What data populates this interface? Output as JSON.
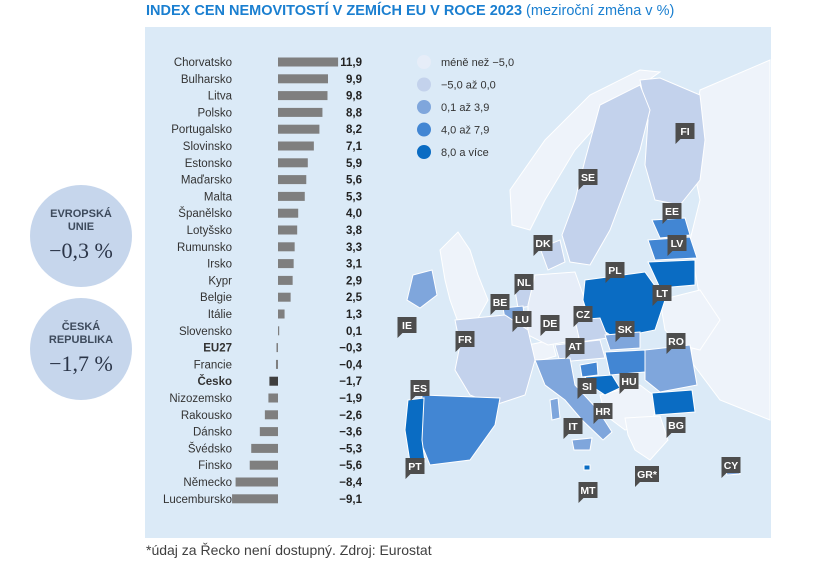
{
  "title": {
    "main": "INDEX CEN NEMOVITOSTÍ V ZEMÍCH EU V ROCE 2023",
    "sub": "(meziroční změna v %)"
  },
  "summary": {
    "eu": {
      "label_line1": "EVROPSKÁ",
      "label_line2": "UNIE",
      "value": "−0,3 %"
    },
    "cz": {
      "label_line1": "ČESKÁ",
      "label_line2": "REPUBLIKA",
      "value": "−1,7 %"
    }
  },
  "legend": [
    {
      "label": "méně než −5,0",
      "color": "#e6edf8"
    },
    {
      "label": "−5,0 až 0,0",
      "color": "#c3d2ec"
    },
    {
      "label": "0,1 až 3,9",
      "color": "#7fa6dc"
    },
    {
      "label": "4,0 až 7,9",
      "color": "#4286d3"
    },
    {
      "label": "8,0 a více",
      "color": "#0a6cc3"
    }
  ],
  "map_labels": [
    "FI",
    "SE",
    "EE",
    "LV",
    "DK",
    "LT",
    "PL",
    "NL",
    "BE",
    "LU",
    "DE",
    "CZ",
    "SK",
    "IE",
    "FR",
    "AT",
    "RO",
    "ES",
    "SI",
    "HU",
    "HR",
    "IT",
    "BG",
    "PT",
    "GR*",
    "MT",
    "CY"
  ],
  "footnote": "*údaj za Řecko není dostupný. Zdroj: Eurostat",
  "colors": {
    "bar": "#7f7f7f",
    "bar_highlight": "#3f3f3f",
    "title": "#1a7fd0",
    "panel": "#dbeaf7"
  },
  "chart_data": {
    "type": "bar",
    "orientation": "horizontal",
    "title": "INDEX CEN NEMOVITOSTÍ V ZEMÍCH EU V ROCE 2023 (meziroční změna v %)",
    "categories": [
      "Chorvatsko",
      "Bulharsko",
      "Litva",
      "Polsko",
      "Portugalsko",
      "Slovinsko",
      "Estonsko",
      "Maďarsko",
      "Malta",
      "Španělsko",
      "Lotyšsko",
      "Rumunsko",
      "Irsko",
      "Kypr",
      "Belgie",
      "Itálie",
      "Slovensko",
      "EU27",
      "Francie",
      "Česko",
      "Nizozemsko",
      "Rakousko",
      "Dánsko",
      "Švédsko",
      "Finsko",
      "Německo",
      "Lucembursko"
    ],
    "values": [
      11.9,
      9.9,
      9.8,
      8.8,
      8.2,
      7.1,
      5.9,
      5.6,
      5.3,
      4.0,
      3.8,
      3.3,
      3.1,
      2.9,
      2.5,
      1.3,
      0.1,
      -0.3,
      -0.4,
      -1.7,
      -1.9,
      -2.6,
      -3.6,
      -5.3,
      -5.6,
      -8.4,
      -9.1
    ],
    "value_labels": [
      "11,9",
      "9,9",
      "9,8",
      "8,8",
      "8,2",
      "7,1",
      "5,9",
      "5,6",
      "5,3",
      "4,0",
      "3,8",
      "3,3",
      "3,1",
      "2,9",
      "2,5",
      "1,3",
      "0,1",
      "−0,3",
      "−0,4",
      "−1,7",
      "−1,9",
      "−2,6",
      "−3,6",
      "−5,3",
      "−5,6",
      "−8,4",
      "−9,1"
    ],
    "bold_categories": [
      "EU27",
      "Česko"
    ],
    "highlight_category": "Česko",
    "xlim": [
      -9.1,
      11.9
    ]
  }
}
